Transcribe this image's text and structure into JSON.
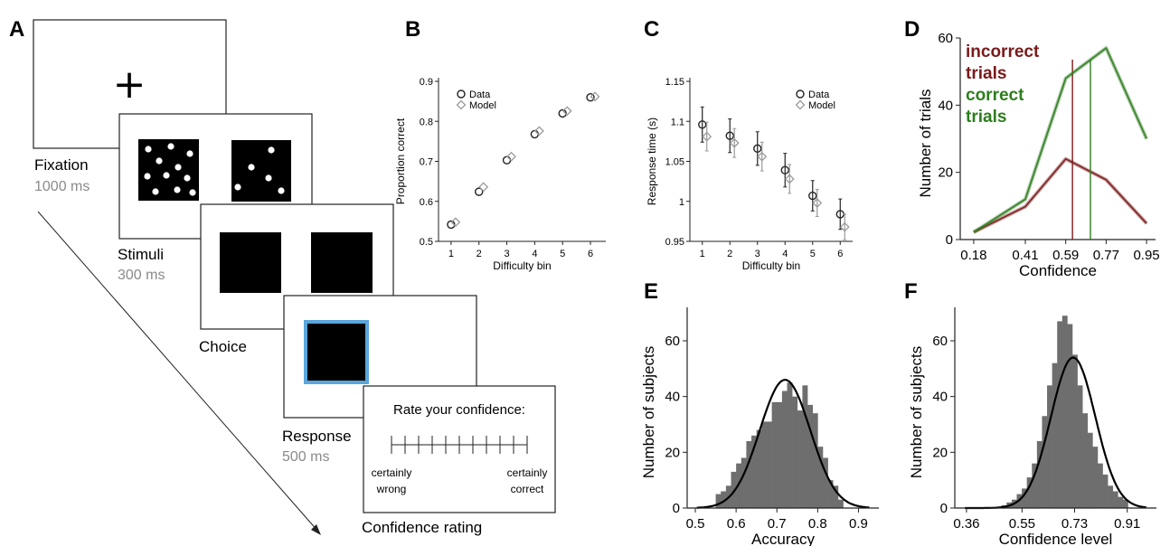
{
  "panel_letters": {
    "A": "A",
    "B": "B",
    "C": "C",
    "D": "D",
    "E": "E",
    "F": "F"
  },
  "task": {
    "fixation_symbol": "+",
    "fixation_label": "Fixation",
    "fixation_time": "1000 ms",
    "stimuli_label": "Stimuli",
    "stimuli_time": "300 ms",
    "choice_label": "Choice",
    "response_label": "Response",
    "response_time": "500 ms",
    "rating_prompt": "Rate your confidence:",
    "scale_left_1": "certainly",
    "scale_left_2": "wrong",
    "scale_right_1": "certainly",
    "scale_right_2": "correct",
    "rating_label": "Confidence rating",
    "highlight_color": "#5aa6dc",
    "time_color": "#8a8a8a"
  },
  "chart_data": [
    {
      "panel": "B",
      "type": "scatter",
      "xlabel": "Difficulty bin",
      "ylabel": "Proportion correct",
      "xticks": [
        "1",
        "2",
        "3",
        "4",
        "5",
        "6"
      ],
      "yticks": [
        "0.5",
        "0.6",
        "0.7",
        "0.8",
        "0.9"
      ],
      "ylim": [
        0.5,
        0.9
      ],
      "legend": "top-left",
      "series": [
        {
          "name": "Data",
          "marker": "circle",
          "color": "#222222",
          "x": [
            1,
            2,
            3,
            4,
            5,
            6
          ],
          "y": [
            0.542,
            0.624,
            0.703,
            0.768,
            0.82,
            0.86
          ]
        },
        {
          "name": "Model",
          "marker": "diamond",
          "color": "#9a9a9a",
          "x": [
            1,
            2,
            3,
            4,
            5,
            6
          ],
          "y": [
            0.548,
            0.636,
            0.712,
            0.776,
            0.826,
            0.862
          ]
        }
      ]
    },
    {
      "panel": "C",
      "type": "scatter",
      "xlabel": "Difficulty bin",
      "ylabel": "Response time (s)",
      "xticks": [
        "1",
        "2",
        "3",
        "4",
        "5",
        "6"
      ],
      "yticks": [
        "0.95",
        "1",
        "1.05",
        "1.1",
        "1.15"
      ],
      "ylim": [
        0.95,
        1.15
      ],
      "legend": "top-right",
      "series": [
        {
          "name": "Data",
          "marker": "circle",
          "color": "#222222",
          "x": [
            1,
            2,
            3,
            4,
            5,
            6
          ],
          "y": [
            1.096,
            1.082,
            1.066,
            1.039,
            1.007,
            0.984
          ],
          "err": [
            0.022,
            0.021,
            0.021,
            0.021,
            0.019,
            0.019
          ]
        },
        {
          "name": "Model",
          "marker": "diamond",
          "color": "#9a9a9a",
          "x": [
            1,
            2,
            3,
            4,
            5,
            6
          ],
          "y": [
            1.081,
            1.073,
            1.056,
            1.028,
            0.998,
            0.968
          ],
          "err": [
            0.018,
            0.018,
            0.018,
            0.018,
            0.017,
            0.016
          ]
        }
      ]
    },
    {
      "panel": "D",
      "type": "line",
      "xlabel": "Confidence",
      "ylabel": "Number of trials",
      "x": [
        "0.18",
        "0.41",
        "0.59",
        "0.77",
        "0.95"
      ],
      "yticks": [
        "0",
        "20",
        "40",
        "60"
      ],
      "ylim": [
        0,
        60
      ],
      "series": [
        {
          "name": "incorrect trials",
          "color": "#7a1a1a",
          "values": [
            2.2,
            9.8,
            24.0,
            17.8,
            4.8
          ],
          "mean": 0.62
        },
        {
          "name": "correct trials",
          "color": "#2e7d1e",
          "values": [
            2.2,
            12.0,
            48.0,
            57.0,
            30.0
          ],
          "mean": 0.7
        }
      ],
      "legend_lines": [
        {
          "text": "incorrect",
          "color": "#7a1a1a"
        },
        {
          "text": "trials",
          "color": "#7a1a1a"
        },
        {
          "text": "correct",
          "color": "#2e7d1e"
        },
        {
          "text": "trials",
          "color": "#2e7d1e"
        }
      ]
    },
    {
      "panel": "E",
      "type": "bar",
      "xlabel": "Accuracy",
      "ylabel": "Number of subjects",
      "xticks": [
        "0.5",
        "0.6",
        "0.7",
        "0.8",
        "0.9"
      ],
      "yticks": [
        "0",
        "20",
        "40",
        "60"
      ],
      "xlim": [
        0.48,
        0.95
      ],
      "ylim": [
        0,
        72
      ],
      "bin_start": 0.55,
      "bin_width": 0.0125,
      "counts": [
        5,
        6,
        8,
        13,
        16,
        18,
        24,
        26,
        28,
        31,
        31,
        38,
        38,
        42,
        45,
        40,
        35,
        44,
        37,
        34,
        22,
        18,
        10,
        8,
        3
      ],
      "fit": {
        "mean": 0.72,
        "sd": 0.062,
        "peak": 46
      }
    },
    {
      "panel": "F",
      "type": "bar",
      "xlabel": "Confidence level",
      "ylabel": "Number of subjects",
      "xticks": [
        "0.36",
        "0.55",
        "0.73",
        "0.91"
      ],
      "yticks": [
        "0",
        "20",
        "40",
        "60"
      ],
      "xlim": [
        0.32,
        1.01
      ],
      "ylim": [
        0,
        72
      ],
      "bin_start": 0.48,
      "bin_width": 0.0173,
      "counts": [
        1,
        2,
        3,
        5,
        7,
        11,
        16,
        24,
        33,
        44,
        52,
        67,
        69,
        66,
        55,
        44,
        34,
        27,
        22,
        16,
        12,
        8,
        6,
        4,
        3
      ],
      "fit": {
        "mean": 0.725,
        "sd": 0.076,
        "peak": 54
      }
    }
  ]
}
